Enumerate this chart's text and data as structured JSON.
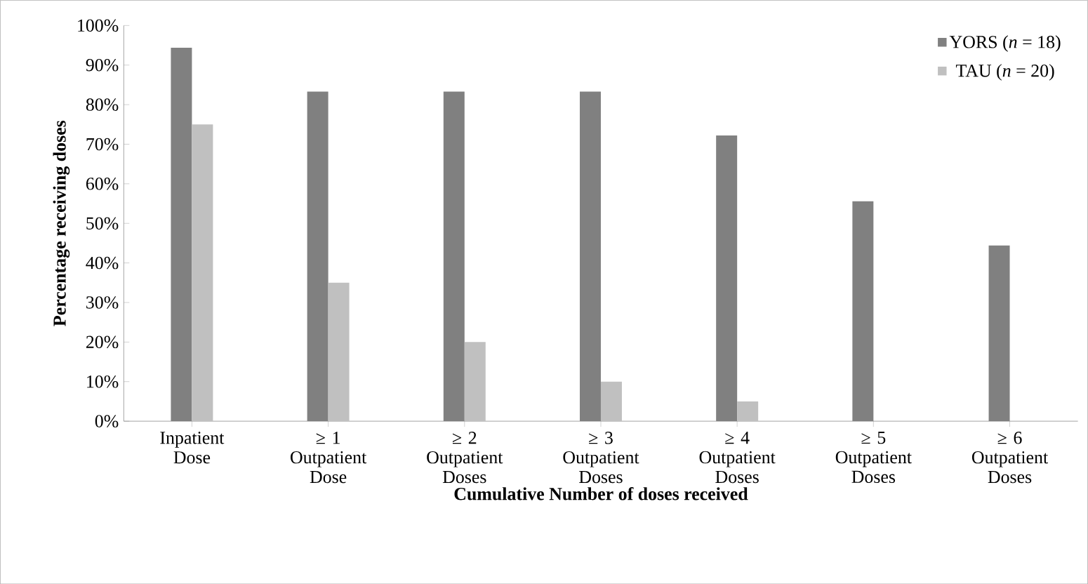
{
  "chart_data": {
    "type": "bar",
    "xlabel": "Cumulative Number of doses received",
    "ylabel": "Percentage receiving doses",
    "categories": [
      "Inpatient Dose",
      "≥ 1 Outpatient Dose",
      "≥ 2 Outpatient Doses",
      "≥ 3 Outpatient Doses",
      "≥ 4 Outpatient Doses",
      "≥ 5 Outpatient Doses",
      "≥ 6 Outpatient Doses"
    ],
    "series": [
      {
        "name": "YORS (*n* = 18)",
        "color": "#808080",
        "values": [
          94.4,
          83.3,
          83.3,
          83.3,
          72.2,
          55.6,
          44.4
        ]
      },
      {
        "name": "TAU (*n* = 20)",
        "color": "#c0c0c0",
        "values": [
          75,
          35,
          20,
          10,
          5,
          0,
          0
        ]
      }
    ],
    "ylim": [
      0,
      100
    ],
    "yticks": [
      {
        "value": 0,
        "label": "0%"
      },
      {
        "value": 10,
        "label": "10%"
      },
      {
        "value": 20,
        "label": "20%"
      },
      {
        "value": 30,
        "label": "30%"
      },
      {
        "value": 40,
        "label": "40%"
      },
      {
        "value": 50,
        "label": "50%"
      },
      {
        "value": 60,
        "label": "60%"
      },
      {
        "value": 70,
        "label": "70%"
      },
      {
        "value": 80,
        "label": "80%"
      },
      {
        "value": 90,
        "label": "90%"
      },
      {
        "value": 100,
        "label": "100%"
      }
    ],
    "legend": "top right",
    "grid": false
  }
}
